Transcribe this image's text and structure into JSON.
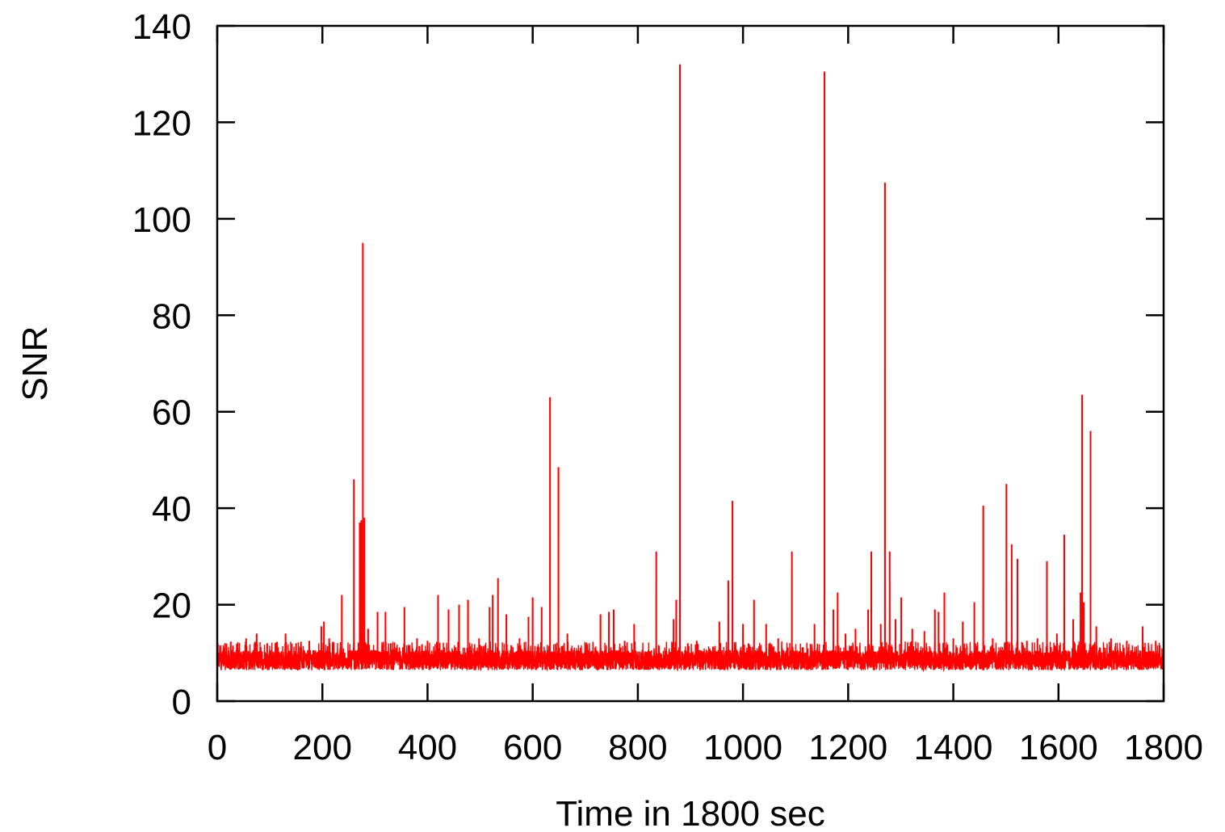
{
  "chart_data": {
    "type": "line",
    "title": "",
    "xlabel": "Time in 1800 sec",
    "ylabel": "SNR",
    "xlim": [
      0,
      1800
    ],
    "ylim": [
      0,
      140
    ],
    "xticks": [
      0,
      200,
      400,
      600,
      800,
      1000,
      1200,
      1400,
      1600,
      1800
    ],
    "yticks": [
      0,
      20,
      40,
      60,
      80,
      100,
      120,
      140
    ],
    "grid": false,
    "legend": "none",
    "colors": {
      "series": "#ff0000",
      "axis": "#000000"
    },
    "series": [
      {
        "baseline_range": [
          5.5,
          11.5
        ],
        "spikes": [
          {
            "x": 1,
            "y": 12
          },
          {
            "x": 15,
            "y": 12
          },
          {
            "x": 30,
            "y": 11.5
          },
          {
            "x": 55,
            "y": 13
          },
          {
            "x": 75,
            "y": 14
          },
          {
            "x": 95,
            "y": 12
          },
          {
            "x": 130,
            "y": 14
          },
          {
            "x": 150,
            "y": 12
          },
          {
            "x": 175,
            "y": 12.5
          },
          {
            "x": 198,
            "y": 15.5
          },
          {
            "x": 203,
            "y": 16.5
          },
          {
            "x": 213,
            "y": 13
          },
          {
            "x": 237,
            "y": 22
          },
          {
            "x": 260,
            "y": 46
          },
          {
            "x": 271,
            "y": 37
          },
          {
            "x": 274,
            "y": 37.5
          },
          {
            "x": 277,
            "y": 95
          },
          {
            "x": 280,
            "y": 38
          },
          {
            "x": 287,
            "y": 15
          },
          {
            "x": 305,
            "y": 18.5
          },
          {
            "x": 320,
            "y": 18.5
          },
          {
            "x": 330,
            "y": 12
          },
          {
            "x": 356,
            "y": 19.5
          },
          {
            "x": 380,
            "y": 13
          },
          {
            "x": 400,
            "y": 12.5
          },
          {
            "x": 420,
            "y": 22
          },
          {
            "x": 440,
            "y": 19
          },
          {
            "x": 460,
            "y": 20
          },
          {
            "x": 477,
            "y": 21
          },
          {
            "x": 498,
            "y": 13
          },
          {
            "x": 518,
            "y": 19.5
          },
          {
            "x": 524,
            "y": 22
          },
          {
            "x": 534,
            "y": 25.5
          },
          {
            "x": 550,
            "y": 18
          },
          {
            "x": 575,
            "y": 13
          },
          {
            "x": 592,
            "y": 17.5
          },
          {
            "x": 600,
            "y": 21.5
          },
          {
            "x": 617,
            "y": 19.5
          },
          {
            "x": 633,
            "y": 63
          },
          {
            "x": 649,
            "y": 48.5
          },
          {
            "x": 666,
            "y": 14
          },
          {
            "x": 700,
            "y": 12
          },
          {
            "x": 729,
            "y": 18
          },
          {
            "x": 745,
            "y": 18.5
          },
          {
            "x": 754,
            "y": 19
          },
          {
            "x": 775,
            "y": 12.5
          },
          {
            "x": 793,
            "y": 16
          },
          {
            "x": 835,
            "y": 31
          },
          {
            "x": 868,
            "y": 17
          },
          {
            "x": 873,
            "y": 21
          },
          {
            "x": 880,
            "y": 132
          },
          {
            "x": 895,
            "y": 12
          },
          {
            "x": 912,
            "y": 12.5
          },
          {
            "x": 955,
            "y": 16.5
          },
          {
            "x": 972,
            "y": 25
          },
          {
            "x": 980,
            "y": 41.5
          },
          {
            "x": 1000,
            "y": 16
          },
          {
            "x": 1021,
            "y": 21
          },
          {
            "x": 1044,
            "y": 16
          },
          {
            "x": 1067,
            "y": 13
          },
          {
            "x": 1093,
            "y": 31
          },
          {
            "x": 1136,
            "y": 16
          },
          {
            "x": 1155,
            "y": 130.5
          },
          {
            "x": 1172,
            "y": 19
          },
          {
            "x": 1180,
            "y": 22.5
          },
          {
            "x": 1195,
            "y": 14
          },
          {
            "x": 1214,
            "y": 15
          },
          {
            "x": 1238,
            "y": 19
          },
          {
            "x": 1244,
            "y": 31
          },
          {
            "x": 1262,
            "y": 16
          },
          {
            "x": 1270,
            "y": 107.5
          },
          {
            "x": 1279,
            "y": 31
          },
          {
            "x": 1290,
            "y": 17
          },
          {
            "x": 1301,
            "y": 21.5
          },
          {
            "x": 1322,
            "y": 15
          },
          {
            "x": 1345,
            "y": 14.5
          },
          {
            "x": 1365,
            "y": 19
          },
          {
            "x": 1372,
            "y": 18.5
          },
          {
            "x": 1383,
            "y": 22.5
          },
          {
            "x": 1400,
            "y": 13
          },
          {
            "x": 1418,
            "y": 16.5
          },
          {
            "x": 1440,
            "y": 20.5
          },
          {
            "x": 1457,
            "y": 40.5
          },
          {
            "x": 1475,
            "y": 13
          },
          {
            "x": 1501,
            "y": 45
          },
          {
            "x": 1511,
            "y": 32.5
          },
          {
            "x": 1522,
            "y": 29.5
          },
          {
            "x": 1540,
            "y": 12.5
          },
          {
            "x": 1560,
            "y": 13
          },
          {
            "x": 1578,
            "y": 29
          },
          {
            "x": 1597,
            "y": 14
          },
          {
            "x": 1611,
            "y": 34.5
          },
          {
            "x": 1628,
            "y": 17
          },
          {
            "x": 1642,
            "y": 22.5
          },
          {
            "x": 1645,
            "y": 63.5
          },
          {
            "x": 1648,
            "y": 20.5
          },
          {
            "x": 1661,
            "y": 56
          },
          {
            "x": 1672,
            "y": 15.5
          },
          {
            "x": 1700,
            "y": 13
          },
          {
            "x": 1730,
            "y": 12.5
          },
          {
            "x": 1760,
            "y": 15.5
          },
          {
            "x": 1785,
            "y": 12.5
          }
        ]
      }
    ]
  }
}
